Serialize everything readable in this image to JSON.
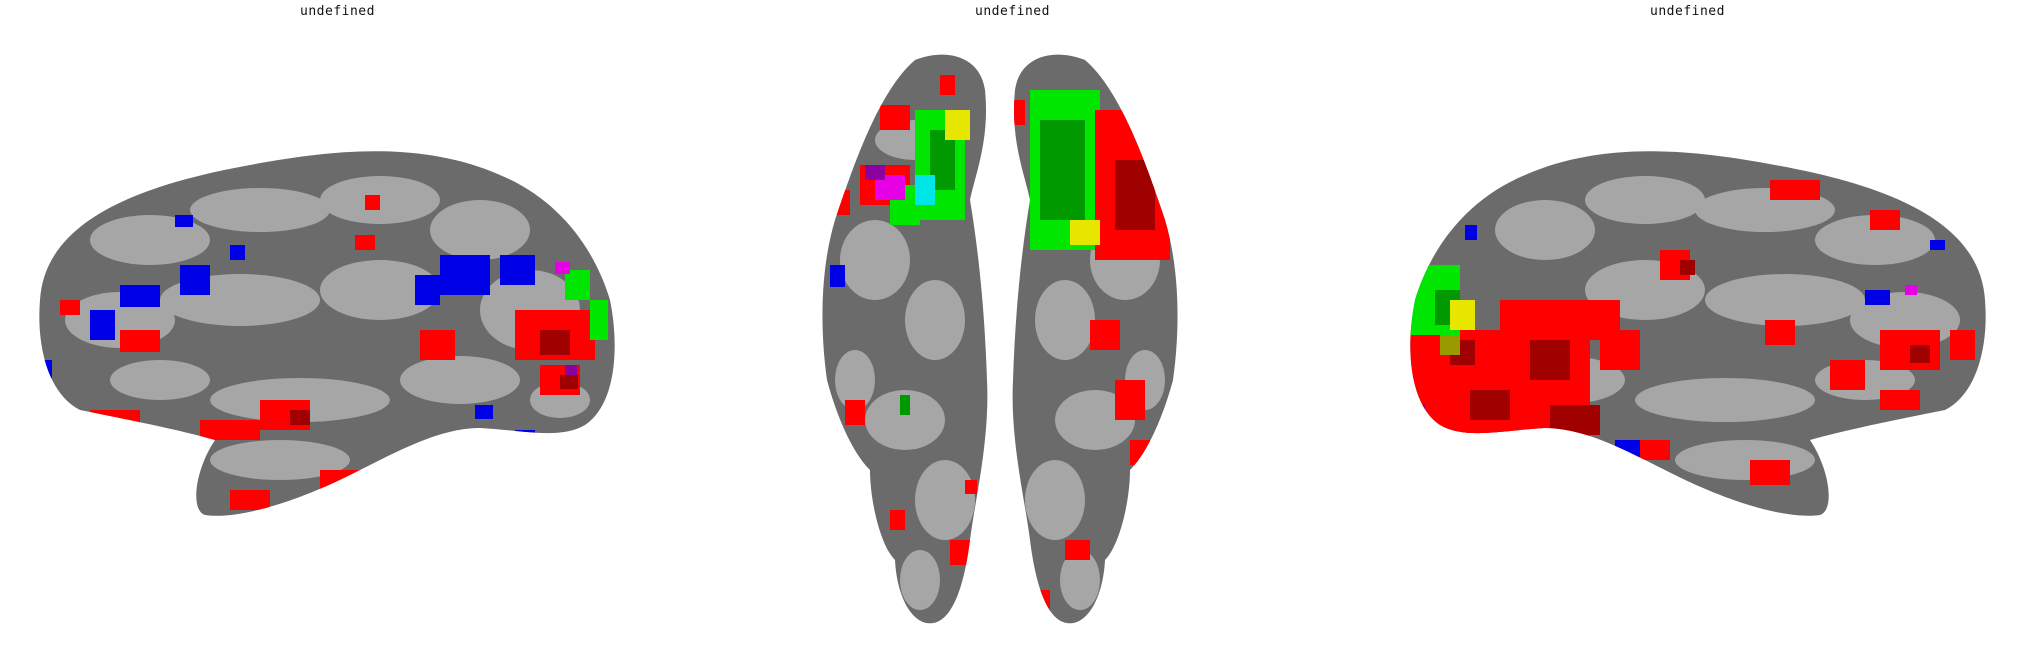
{
  "panels": [
    {
      "id": "left-lateral",
      "title": "undefined"
    },
    {
      "id": "ventral",
      "title": "undefined"
    },
    {
      "id": "right-lateral",
      "title": "undefined"
    }
  ],
  "colors": {
    "background": "#ffffff",
    "sulcus": "#6b6b6b",
    "gyrus": "#a6a6a6",
    "red": "#ff0000",
    "dark_red": "#a00000",
    "blue": "#0000e6",
    "green": "#00e600",
    "dark_green": "#009900",
    "yellow": "#e6e600",
    "olive": "#999900",
    "cyan": "#00e6e6",
    "magenta": "#e600e6",
    "purple": "#8c00a0"
  }
}
